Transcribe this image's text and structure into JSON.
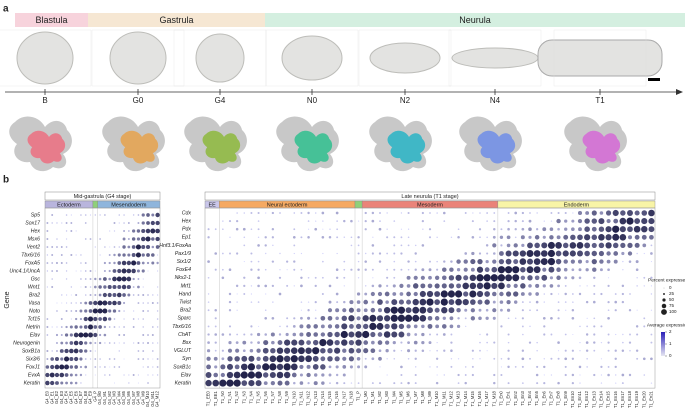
{
  "panel_a": {
    "label": "a",
    "periods": [
      {
        "name": "Blastula",
        "color": "#f7d3dc"
      },
      {
        "name": "Gastrula",
        "color": "#f6e7d3"
      },
      {
        "name": "Neurula",
        "color": "#d4efe0"
      }
    ],
    "stages": [
      {
        "name": "B",
        "color": "#ec6f80"
      },
      {
        "name": "G0",
        "color": "#e6a24c"
      },
      {
        "name": "G4",
        "color": "#8db93c"
      },
      {
        "name": "N0",
        "color": "#2fbf8e"
      },
      {
        "name": "N2",
        "color": "#28b4c6"
      },
      {
        "name": "N4",
        "color": "#6e8de8"
      },
      {
        "name": "T1",
        "color": "#d569d6"
      }
    ]
  },
  "panel_b": {
    "label": "b",
    "axis_label": "Gene",
    "left": {
      "title": "Mid-gastrula (G4 stage)",
      "groups": [
        {
          "name": "Ectoderm",
          "color": "#b9b5dd",
          "clusters": [
            "G4_E0",
            "G4_E1",
            "G4_E2",
            "G4_E3",
            "G4_E4",
            "G4_E5",
            "G4_E6",
            "G4_E7",
            "G4_E8",
            "G4_E9"
          ]
        },
        {
          "color": "#8fd07a",
          "clusters": [
            "G4_P"
          ]
        },
        {
          "name": "Mesendoderm",
          "color": "#8fb5dc",
          "clusters": [
            "G4_M0",
            "G4_M1",
            "G4_M2",
            "G4_M3",
            "G4_M4",
            "G4_M5",
            "G4_M6",
            "G4_M7",
            "G4_M8",
            "G4_M9",
            "G4_M10",
            "G4_M11",
            "G4_M12"
          ]
        }
      ],
      "genes": [
        "Sp5",
        "Sox17",
        "Hex",
        "Msx6",
        "Vent2",
        "Tbx6/16",
        "FoxA5",
        "Unc4.1/UncA",
        "Gsc",
        "Wnt1",
        "Bra2",
        "Vasa",
        "Noto",
        "Tcf15",
        "Netrin",
        "Elav",
        "Neurogenin",
        "SoxB1a",
        "Six3/6",
        "FoxJ1",
        "EvxA",
        "Keratin"
      ]
    },
    "right": {
      "title": "Late neurula (T1 stage)",
      "groups": [
        {
          "name": "EE",
          "color": "#c9c6ea",
          "clusters": [
            "T1_EE0",
            "T1_EE1"
          ]
        },
        {
          "name": "Neural ectoderm",
          "color": "#f5a962",
          "clusters": [
            "T1_N0",
            "T1_N1",
            "T1_N2",
            "T1_N3",
            "T1_N4",
            "T1_N5",
            "T1_N6",
            "T1_N7",
            "T1_N8",
            "T1_N9",
            "T1_N10",
            "T1_N11",
            "T1_N12",
            "T1_N13",
            "T1_N14",
            "T1_N15",
            "T1_N16",
            "T1_N17",
            "T1_N18"
          ]
        },
        {
          "color": "#8fd07a",
          "clusters": [
            "T1_P"
          ]
        },
        {
          "name": "Mesoderm",
          "color": "#ea8379",
          "clusters": [
            "T1_M0",
            "T1_M1",
            "T1_M2",
            "T1_M3",
            "T1_M4",
            "T1_M5",
            "T1_M6",
            "T1_M7",
            "T1_M8",
            "T1_M9",
            "T1_M10",
            "T1_M11",
            "T1_M12",
            "T1_M13",
            "T1_M14",
            "T1_M15",
            "T1_M16",
            "T1_M17",
            "T1_M18"
          ]
        },
        {
          "name": "Endoderm",
          "color": "#f8f4a6",
          "clusters": [
            "T1_En0",
            "T1_En1",
            "T1_En2",
            "T1_En3",
            "T1_En4",
            "T1_En5",
            "T1_En6",
            "T1_En7",
            "T1_En8",
            "T1_En9",
            "T1_En10",
            "T1_En11",
            "T1_En12",
            "T1_En13",
            "T1_En14",
            "T1_En15",
            "T1_En16",
            "T1_En17",
            "T1_En18",
            "T1_En19",
            "T1_En20",
            "T1_En21"
          ]
        }
      ],
      "genes": [
        "Cdx",
        "Hex",
        "Pdx",
        "Ep1",
        "Hnf3.1/FoxAa",
        "Pax1/9",
        "Six1/2",
        "FoxE4",
        "Nkx2-1",
        "Mrf1",
        "Hand",
        "Twist",
        "Bra2",
        "Sparc",
        "Tbx6/16",
        "ChAT",
        "Bsx",
        "VGLUT",
        "Syn",
        "SoxB1c",
        "Elav",
        "Keratin"
      ]
    },
    "legend": {
      "size_title": "Percent expressed",
      "size_ticks": [
        0,
        25,
        50,
        75,
        100
      ],
      "color_title": "Average expression",
      "color_ticks": [
        2,
        1,
        0
      ]
    }
  }
}
